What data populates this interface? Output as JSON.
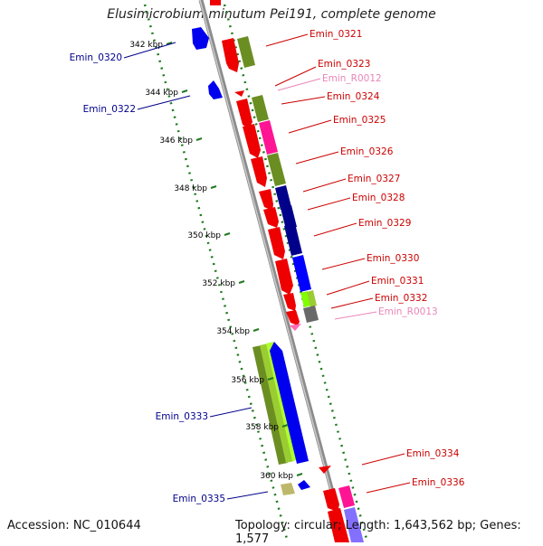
{
  "title": "Elusimicrobium minutum Pei191, complete genome",
  "footer": {
    "accession": "Accession: NC_010644",
    "topology": "Topology: circular; Length: 1,643,562 bp; Genes: 1,577"
  },
  "colors": {
    "backbone": "#9a9a9a",
    "ruler": "#1f7a1f",
    "label_red": "#cc0000",
    "label_blue": "#00008b",
    "label_pink": "#e986b8"
  },
  "scale": {
    "ticks": [
      "342 kbp",
      "344 kbp",
      "346 kbp",
      "348 kbp",
      "350 kbp",
      "352 kbp",
      "354 kbp",
      "356 kbp",
      "358 kbp",
      "360 kbp"
    ]
  },
  "labels": [
    {
      "text": "Emin_0321",
      "color": "red"
    },
    {
      "text": "Emin_0323",
      "color": "red"
    },
    {
      "text": "Emin_R0012",
      "color": "pink"
    },
    {
      "text": "Emin_0324",
      "color": "red"
    },
    {
      "text": "Emin_0325",
      "color": "red"
    },
    {
      "text": "Emin_0326",
      "color": "red"
    },
    {
      "text": "Emin_0327",
      "color": "red"
    },
    {
      "text": "Emin_0328",
      "color": "red"
    },
    {
      "text": "Emin_0329",
      "color": "red"
    },
    {
      "text": "Emin_0330",
      "color": "red"
    },
    {
      "text": "Emin_0331",
      "color": "red"
    },
    {
      "text": "Emin_0332",
      "color": "red"
    },
    {
      "text": "Emin_R0013",
      "color": "pink"
    },
    {
      "text": "Emin_0334",
      "color": "red"
    },
    {
      "text": "Emin_0336",
      "color": "red"
    },
    {
      "text": "Emin_0320",
      "color": "blue"
    },
    {
      "text": "Emin_0322",
      "color": "blue"
    },
    {
      "text": "Emin_0333",
      "color": "blue"
    },
    {
      "text": "Emin_0335",
      "color": "blue"
    }
  ]
}
